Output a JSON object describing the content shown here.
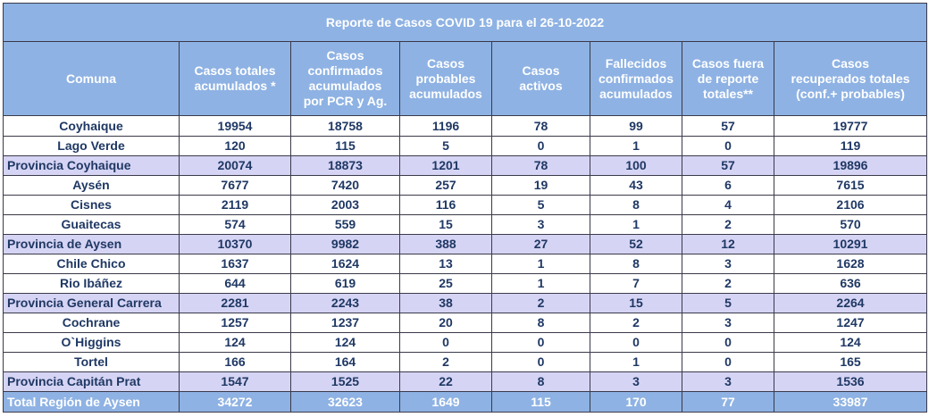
{
  "report": {
    "title": "Reporte de Casos COVID 19  para el 26-10-2022",
    "columns": [
      "Comuna",
      "Casos totales\nacumulados *",
      "Casos\nconfirmados\nacumulados\npor PCR y Ag.",
      "Casos\nprobables\nacumulados",
      "Casos\nactivos",
      "Fallecidos\nconfirmados\nacumulados",
      "Casos fuera\nde reporte\ntotales**",
      "Casos\nrecuperados  totales\n(conf.+ probables)"
    ],
    "rows": [
      {
        "type": "comuna",
        "cells": [
          "Coyhaique",
          "19954",
          "18758",
          "1196",
          "78",
          "99",
          "57",
          "19777"
        ]
      },
      {
        "type": "comuna",
        "cells": [
          "Lago Verde",
          "120",
          "115",
          "5",
          "0",
          "1",
          "0",
          "119"
        ]
      },
      {
        "type": "provincia",
        "cells": [
          "Provincia Coyhaique",
          "20074",
          "18873",
          "1201",
          "78",
          "100",
          "57",
          "19896"
        ]
      },
      {
        "type": "comuna",
        "cells": [
          "Aysén",
          "7677",
          "7420",
          "257",
          "19",
          "43",
          "6",
          "7615"
        ]
      },
      {
        "type": "comuna",
        "cells": [
          "Cisnes",
          "2119",
          "2003",
          "116",
          "5",
          "8",
          "4",
          "2106"
        ]
      },
      {
        "type": "comuna",
        "cells": [
          "Guaitecas",
          "574",
          "559",
          "15",
          "3",
          "1",
          "2",
          "570"
        ]
      },
      {
        "type": "provincia",
        "cells": [
          "Provincia de Aysen",
          "10370",
          "9982",
          "388",
          "27",
          "52",
          "12",
          "10291"
        ]
      },
      {
        "type": "comuna",
        "cells": [
          "Chile Chico",
          "1637",
          "1624",
          "13",
          "1",
          "8",
          "3",
          "1628"
        ]
      },
      {
        "type": "comuna",
        "cells": [
          "Rio Ibáñez",
          "644",
          "619",
          "25",
          "1",
          "7",
          "2",
          "636"
        ]
      },
      {
        "type": "provincia",
        "cells": [
          "Provincia General Carrera",
          "2281",
          "2243",
          "38",
          "2",
          "15",
          "5",
          "2264"
        ]
      },
      {
        "type": "comuna",
        "cells": [
          "Cochrane",
          "1257",
          "1237",
          "20",
          "8",
          "2",
          "3",
          "1247"
        ]
      },
      {
        "type": "comuna",
        "cells": [
          "O`Higgins",
          "124",
          "124",
          "0",
          "0",
          "0",
          "0",
          "124"
        ]
      },
      {
        "type": "comuna",
        "cells": [
          "Tortel",
          "166",
          "164",
          "2",
          "0",
          "1",
          "0",
          "165"
        ]
      },
      {
        "type": "provincia",
        "cells": [
          "Provincia Capitán Prat",
          "1547",
          "1525",
          "22",
          "8",
          "3",
          "3",
          "1536"
        ]
      },
      {
        "type": "total",
        "cells": [
          "Total Región de Aysen",
          "34272",
          "32623",
          "1649",
          "115",
          "170",
          "77",
          "33987"
        ]
      }
    ]
  }
}
